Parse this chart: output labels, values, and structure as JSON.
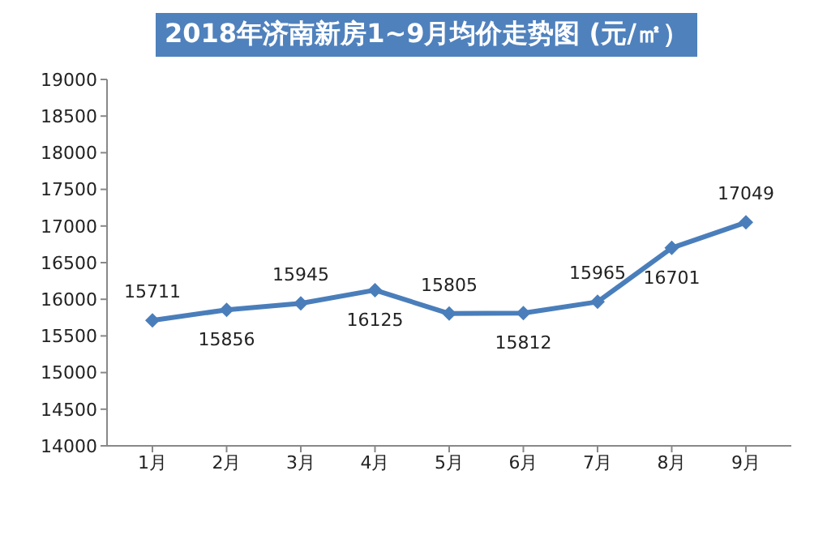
{
  "chart_data": {
    "type": "line",
    "title": "2018年济南新房1~9月均价走势图 (元/㎡）",
    "categories": [
      "1月",
      "2月",
      "3月",
      "4月",
      "5月",
      "6月",
      "7月",
      "8月",
      "9月"
    ],
    "series": [
      {
        "color": "#4a7ebb",
        "values": [
          15711,
          15856,
          15945,
          16125,
          15805,
          15812,
          15965,
          16701,
          17049
        ]
      }
    ],
    "ylim": [
      14000,
      19000
    ],
    "yticks": [
      14000,
      14500,
      15000,
      15500,
      16000,
      16500,
      17000,
      17500,
      18000,
      18500,
      19000
    ],
    "grid": false,
    "legend": false,
    "marker": "diamond",
    "line_style": "solid",
    "data_labels": true
  }
}
